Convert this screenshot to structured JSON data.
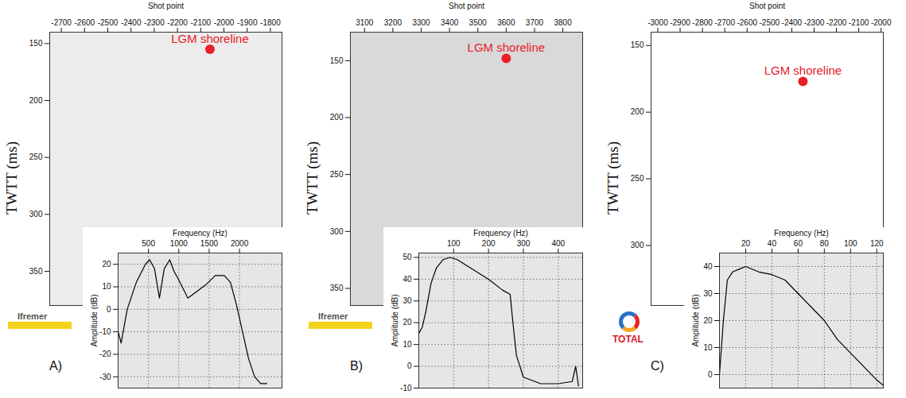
{
  "chart_data": [
    {
      "type": "scatter",
      "panel_label": "A)",
      "logo": "Ifremer",
      "x_label": "Shot point",
      "y_label": "TWTT (ms)",
      "xlim": [
        -2750,
        -1750
      ],
      "xticks": [
        -2700,
        -2600,
        -2500,
        -2400,
        -2300,
        -2200,
        -2100,
        -2000,
        -1900,
        -1800
      ],
      "ylim": [
        380,
        140
      ],
      "yticks": [
        150,
        200,
        250,
        300,
        350
      ],
      "x": [
        -2060
      ],
      "series": [
        {
          "name": "LGM shoreline",
          "color": "#e8202a",
          "marker": "circle",
          "values": [
            155
          ]
        }
      ]
    },
    {
      "type": "line",
      "x_label": "Frequency (Hz)",
      "y_label": "Amplitude (dB)",
      "grid": true,
      "color": "#000000",
      "xlim": [
        0,
        2700
      ],
      "xticks": [
        500,
        1000,
        1500,
        2000
      ],
      "ylim": [
        -35,
        25
      ],
      "yticks": [
        -30,
        -20,
        -10,
        0,
        10,
        20
      ],
      "x": [
        0,
        50,
        150,
        300,
        450,
        520,
        600,
        680,
        760,
        850,
        920,
        1000,
        1150,
        1300,
        1450,
        1600,
        1750,
        1850,
        1950,
        2050,
        2150,
        2250,
        2350,
        2450
      ],
      "values": [
        -10,
        -15,
        0,
        12,
        20,
        22,
        18,
        5,
        18,
        22,
        17,
        13,
        5,
        8,
        11,
        15,
        15,
        12,
        2,
        -10,
        -22,
        -30,
        -33,
        -33
      ]
    },
    {
      "type": "scatter",
      "panel_label": "B)",
      "logo": "Ifremer",
      "x_label": "Shot point",
      "y_label": "TWTT (ms)",
      "xlim": [
        3050,
        3870
      ],
      "xticks": [
        3100,
        3200,
        3300,
        3400,
        3500,
        3600,
        3700,
        3800
      ],
      "ylim": [
        365,
        125
      ],
      "yticks": [
        150,
        200,
        250,
        300,
        350
      ],
      "x": [
        3600
      ],
      "series": [
        {
          "name": "LGM shoreline",
          "color": "#e8202a",
          "marker": "circle",
          "values": [
            148
          ]
        }
      ]
    },
    {
      "type": "line",
      "x_label": "Frequency (Hz)",
      "y_label": "Amplitude (dB)",
      "grid": true,
      "color": "#000000",
      "xlim": [
        0,
        470
      ],
      "xticks": [
        100,
        200,
        300,
        400
      ],
      "ylim": [
        -10,
        52
      ],
      "yticks": [
        -10,
        0,
        10,
        20,
        30,
        40,
        50
      ],
      "x": [
        0,
        10,
        20,
        35,
        50,
        70,
        90,
        110,
        150,
        200,
        240,
        262,
        270,
        280,
        300,
        350,
        400,
        440,
        450,
        458
      ],
      "values": [
        15,
        18,
        25,
        38,
        45,
        49,
        50,
        49,
        45,
        40,
        35,
        33,
        20,
        5,
        -5,
        -8,
        -8,
        -7,
        0,
        -9
      ]
    },
    {
      "type": "scatter",
      "panel_label": "C)",
      "logo": "TOTAL",
      "x_label": "Shot point",
      "y_label": "TWTT (ms)",
      "xlim": [
        -3030,
        -1990
      ],
      "xticks": [
        -3000,
        -2900,
        -2800,
        -2700,
        -2600,
        -2500,
        -2400,
        -2300,
        -2200,
        -2100,
        -2000
      ],
      "ylim": [
        345,
        140
      ],
      "yticks": [
        150,
        200,
        250,
        300
      ],
      "x": [
        -2350
      ],
      "series": [
        {
          "name": "LGM shoreline",
          "color": "#e8202a",
          "marker": "circle",
          "values": [
            177
          ]
        }
      ]
    },
    {
      "type": "line",
      "x_label": "Frequency (Hz)",
      "y_label": "Amplitude (dB)",
      "grid": true,
      "color": "#000000",
      "xlim": [
        0,
        125
      ],
      "xticks": [
        20,
        40,
        60,
        80,
        100,
        120
      ],
      "ylim": [
        -5,
        45
      ],
      "yticks": [
        0,
        10,
        20,
        30,
        40
      ],
      "x": [
        0,
        3,
        6,
        10,
        15,
        20,
        30,
        40,
        50,
        60,
        70,
        80,
        90,
        100,
        110,
        120,
        125
      ],
      "values": [
        0,
        20,
        35,
        38,
        39,
        40,
        38,
        37,
        35,
        30,
        25,
        20,
        13,
        8,
        3,
        -2,
        -4
      ]
    }
  ]
}
